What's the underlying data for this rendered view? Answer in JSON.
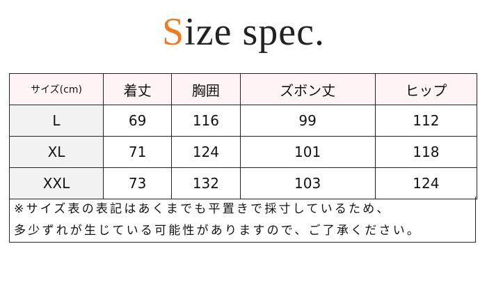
{
  "title": {
    "first_letter": "S",
    "rest": "ize spec."
  },
  "colors": {
    "accent": "#f07a1e",
    "header_bg": "#fff4f5",
    "size_col_bg": "#f2f2f2"
  },
  "table": {
    "headers": [
      "サイズ(cm)",
      "着丈",
      "胸囲",
      "ズボン丈",
      "ヒップ"
    ],
    "rows": [
      [
        "L",
        "69",
        "116",
        "99",
        "112"
      ],
      [
        "XL",
        "71",
        "124",
        "101",
        "118"
      ],
      [
        "XXL",
        "73",
        "132",
        "103",
        "124"
      ]
    ]
  },
  "note": {
    "line1": "※サイズ表の表記はあくまでも平置きで採寸しているため、",
    "line2": "多少ずれが生じている可能性がありますので、ご了承ください。"
  }
}
